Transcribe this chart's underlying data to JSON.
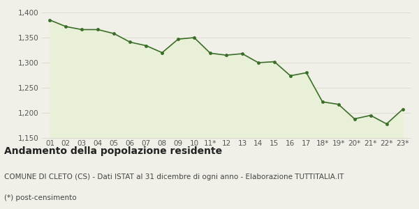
{
  "x_labels": [
    "01",
    "02",
    "03",
    "04",
    "05",
    "06",
    "07",
    "08",
    "09",
    "10",
    "11*",
    "12",
    "13",
    "14",
    "15",
    "16",
    "17",
    "18*",
    "19*",
    "20*",
    "21*",
    "22*",
    "23*"
  ],
  "values": [
    1385,
    1372,
    1366,
    1366,
    1358,
    1341,
    1334,
    1320,
    1347,
    1350,
    1319,
    1315,
    1318,
    1300,
    1302,
    1274,
    1280,
    1222,
    1217,
    1188,
    1195,
    1178,
    1207
  ],
  "line_color": "#3a6e28",
  "marker_color": "#3a6e28",
  "fill_color": "#e8f0d8",
  "background_color": "#f0f0e8",
  "ylim": [
    1150,
    1400
  ],
  "yticks": [
    1150,
    1200,
    1250,
    1300,
    1350,
    1400
  ],
  "title": "Andamento della popolazione residente",
  "subtitle": "COMUNE DI CLETO (CS) - Dati ISTAT al 31 dicembre di ogni anno - Elaborazione TUTTITALIA.IT",
  "footnote": "(*) post-censimento",
  "title_fontsize": 10,
  "subtitle_fontsize": 7.5,
  "footnote_fontsize": 7.5,
  "tick_fontsize": 7.5,
  "grid_color": "#d8d8cc"
}
